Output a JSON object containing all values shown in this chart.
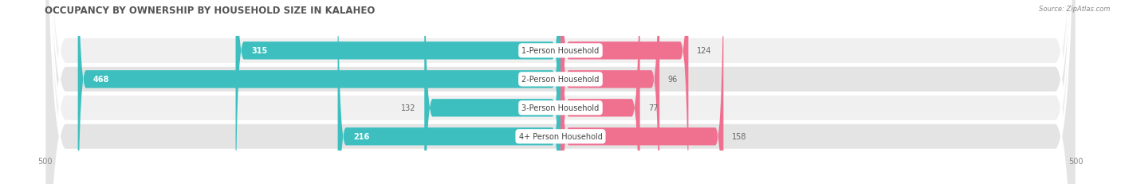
{
  "title": "OCCUPANCY BY OWNERSHIP BY HOUSEHOLD SIZE IN KALAHEO",
  "source": "Source: ZipAtlas.com",
  "categories": [
    "1-Person Household",
    "2-Person Household",
    "3-Person Household",
    "4+ Person Household"
  ],
  "owner_values": [
    315,
    468,
    132,
    216
  ],
  "renter_values": [
    124,
    96,
    77,
    158
  ],
  "owner_color": "#3DBFBF",
  "renter_color": "#F07090",
  "row_bg_colors": [
    "#F0F0F0",
    "#E4E4E4",
    "#F0F0F0",
    "#E4E4E4"
  ],
  "pill_bg_color": "#F8F8F8",
  "axis_max": 500,
  "title_fontsize": 8.5,
  "bar_label_fontsize": 7,
  "category_fontsize": 7,
  "legend_fontsize": 7,
  "axis_tick_fontsize": 7,
  "figsize": [
    14.06,
    2.32
  ],
  "dpi": 100
}
